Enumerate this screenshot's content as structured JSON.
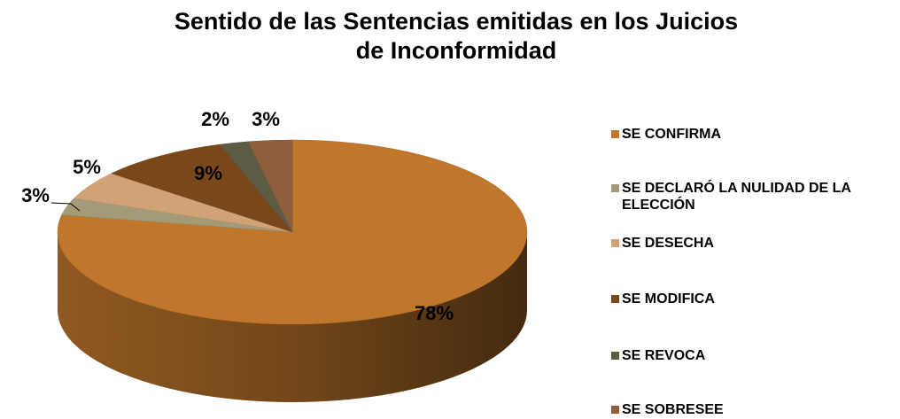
{
  "chart_data": {
    "type": "pie",
    "title": "Sentido de las Sentencias emitidas en los Juicios de Inconformidad",
    "categories": [
      "SE CONFIRMA",
      "SE DECLARÓ LA NULIDAD DE LA ELECCIÓN",
      "SE DESECHA",
      "SE MODIFICA",
      "SE REVOCA",
      "SE SOBRESEE"
    ],
    "values": [
      78,
      3,
      5,
      9,
      2,
      3
    ],
    "value_labels": [
      "78%",
      "3%",
      "5%",
      "9%",
      "2%",
      "3%"
    ],
    "colors": [
      "#c0772c",
      "#a39a78",
      "#d2a277",
      "#7a471b",
      "#5d5b44",
      "#8d5f3c"
    ],
    "legend": "right"
  }
}
